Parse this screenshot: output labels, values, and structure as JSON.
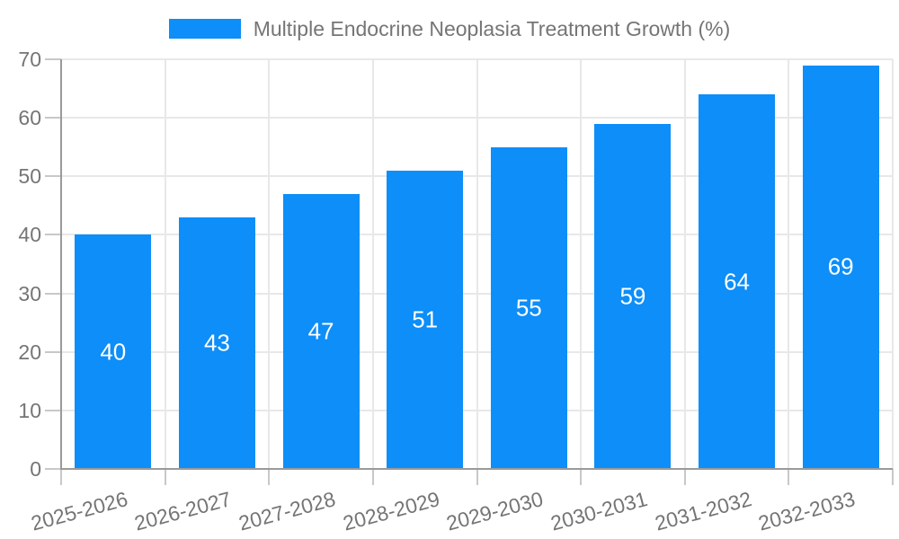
{
  "legend": {
    "label": "Multiple Endocrine Neoplasia Treatment Growth (%)"
  },
  "chart_data": {
    "type": "bar",
    "title": "Multiple Endocrine Neoplasia Treatment Growth (%)",
    "series_name": "Multiple Endocrine Neoplasia Treatment Growth (%)",
    "categories": [
      "2025-2026",
      "2026-2027",
      "2027-2028",
      "2028-2029",
      "2029-2030",
      "2030-2031",
      "2031-2032",
      "2032-2033"
    ],
    "values": [
      40,
      43,
      47,
      51,
      55,
      59,
      64,
      69
    ],
    "value_labels": [
      "40",
      "43",
      "47",
      "51",
      "55",
      "59",
      "64",
      "69"
    ],
    "xlabel": "",
    "ylabel": "",
    "ylim": [
      0,
      70
    ],
    "yticks": [
      0,
      10,
      20,
      30,
      40,
      50,
      60,
      70
    ],
    "grid": true,
    "legend_position": "top",
    "x_label_rotation_deg": -15
  },
  "colors": {
    "bar": "#0d8ef8",
    "axis_line": "#9a9a9a",
    "gridline": "#e8e8e8",
    "tick": "#c8c8c8",
    "axis_label": "#757575",
    "value_label": "#ffffff",
    "background": "#ffffff"
  }
}
